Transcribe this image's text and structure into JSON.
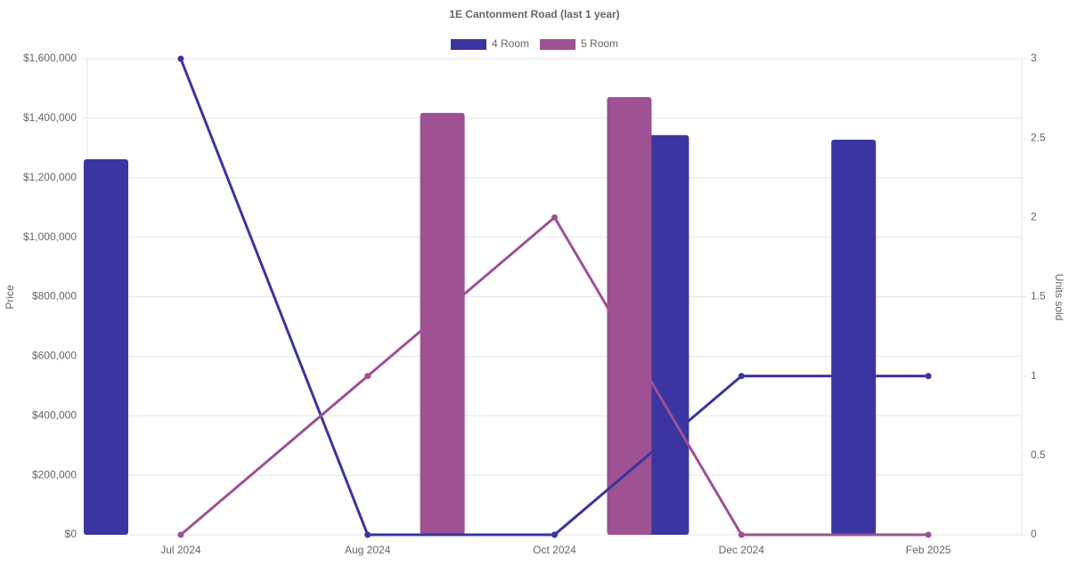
{
  "chart_data": {
    "type": "bar-line",
    "title": "1E Cantonment Road (last 1 year)",
    "y_label": "Price",
    "y2_label": "Units sold",
    "categories": [
      "Jul 2024",
      "Aug 2024",
      "Oct 2024",
      "Dec 2024",
      "Feb 2025"
    ],
    "series": [
      {
        "name": "4 Room",
        "color": "#3a35a0",
        "values": [
          1262000,
          null,
          null,
          1343000,
          1328000
        ],
        "units": [
          3,
          0,
          0,
          1,
          1
        ]
      },
      {
        "name": "5 Room",
        "color": "#9e5193",
        "values": [
          null,
          1418000,
          1471000,
          null,
          null
        ],
        "units": [
          0,
          1,
          2,
          0,
          0
        ]
      }
    ],
    "ylim": [
      0,
      1600000
    ],
    "yticks": [
      {
        "value": 0,
        "label": "$0"
      },
      {
        "value": 200000,
        "label": "$200,000"
      },
      {
        "value": 400000,
        "label": "$400,000"
      },
      {
        "value": 600000,
        "label": "$600,000"
      },
      {
        "value": 800000,
        "label": "$800,000"
      },
      {
        "value": 1000000,
        "label": "$1,000,000"
      },
      {
        "value": 1200000,
        "label": "$1,200,000"
      },
      {
        "value": 1400000,
        "label": "$1,400,000"
      },
      {
        "value": 1600000,
        "label": "$1,600,000"
      }
    ],
    "y2lim": [
      0,
      3
    ],
    "y2ticks": [
      0,
      0.5,
      1,
      1.5,
      2,
      2.5,
      3
    ],
    "grid": true,
    "legend": "top"
  }
}
